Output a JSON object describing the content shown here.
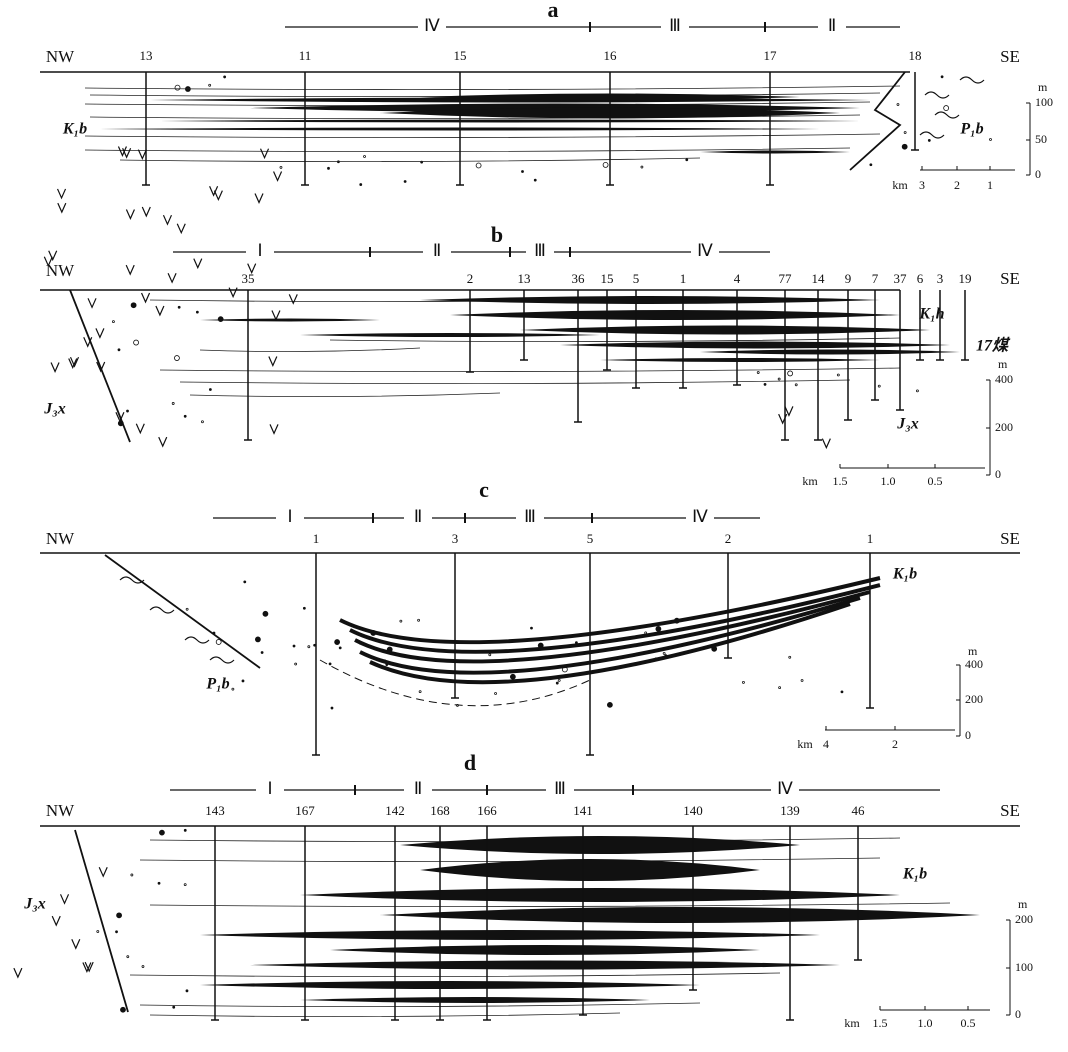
{
  "panels": [
    {
      "label": "a",
      "phases": [
        "Ⅳ",
        "Ⅲ",
        "Ⅱ"
      ],
      "left": "NW",
      "right": "SE",
      "wells": [
        "13",
        "11",
        "15",
        "16",
        "17",
        "18"
      ],
      "formations": [
        "K₁b",
        "P₁b"
      ],
      "depth_scale": {
        "unit": "m",
        "ticks": [
          "100",
          "50",
          "0"
        ]
      },
      "distance_scale": {
        "unit": "km",
        "ticks": [
          "3",
          "2",
          "1"
        ]
      }
    },
    {
      "label": "b",
      "phases": [
        "Ⅰ",
        "Ⅱ",
        "Ⅲ",
        "Ⅳ"
      ],
      "left": "NW",
      "right": "SE",
      "wells": [
        "35",
        "2",
        "13",
        "36",
        "15",
        "5",
        "1",
        "4",
        "77",
        "14",
        "9",
        "7",
        "37",
        "6",
        "3",
        "19"
      ],
      "formations": [
        "K₁h",
        "17煤",
        "J₃x",
        "J₃x"
      ],
      "depth_scale": {
        "unit": "m",
        "ticks": [
          "400",
          "200",
          "0"
        ]
      },
      "distance_scale": {
        "unit": "km",
        "ticks": [
          "1.5",
          "1.0",
          "0.5"
        ]
      }
    },
    {
      "label": "c",
      "phases": [
        "Ⅰ",
        "Ⅱ",
        "Ⅲ",
        "Ⅳ"
      ],
      "left": "NW",
      "right": "SE",
      "wells": [
        "1",
        "3",
        "5",
        "2",
        "1"
      ],
      "formations": [
        "K₁b",
        "P₁b"
      ],
      "depth_scale": {
        "unit": "m",
        "ticks": [
          "400",
          "200",
          "0"
        ]
      },
      "distance_scale": {
        "unit": "km",
        "ticks": [
          "4",
          "2"
        ]
      }
    },
    {
      "label": "d",
      "phases": [
        "Ⅰ",
        "Ⅱ",
        "Ⅲ",
        "Ⅳ"
      ],
      "left": "NW",
      "right": "SE",
      "wells": [
        "143",
        "167",
        "142",
        "168",
        "166",
        "141",
        "140",
        "139",
        "46"
      ],
      "formations": [
        "J₃x",
        "K₁b"
      ],
      "depth_scale": {
        "unit": "m",
        "ticks": [
          "200",
          "100",
          "0"
        ]
      },
      "distance_scale": {
        "unit": "km",
        "ticks": [
          "1.5",
          "1.0",
          "0.5"
        ]
      }
    }
  ]
}
